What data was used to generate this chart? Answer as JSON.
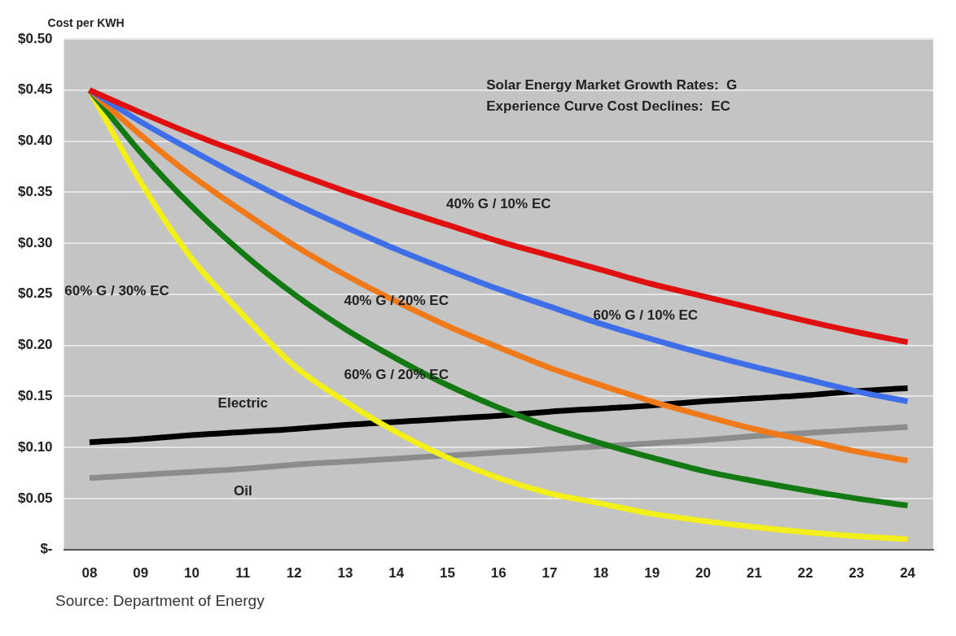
{
  "chart_data": {
    "type": "line",
    "ylabel": "Cost per KWH",
    "categories": [
      "08",
      "09",
      "10",
      "11",
      "12",
      "13",
      "14",
      "15",
      "16",
      "17",
      "18",
      "19",
      "20",
      "21",
      "22",
      "23",
      "24"
    ],
    "ylim": [
      0,
      0.5
    ],
    "yticks": [
      {
        "value": 0,
        "label": "$-"
      },
      {
        "value": 0.05,
        "label": "$0.05"
      },
      {
        "value": 0.1,
        "label": "$0.10"
      },
      {
        "value": 0.15,
        "label": "$0.15"
      },
      {
        "value": 0.2,
        "label": "$0.20"
      },
      {
        "value": 0.25,
        "label": "$0.25"
      },
      {
        "value": 0.3,
        "label": "$0.30"
      },
      {
        "value": 0.35,
        "label": "$0.35"
      },
      {
        "value": 0.4,
        "label": "$0.40"
      },
      {
        "value": 0.45,
        "label": "$0.45"
      },
      {
        "value": 0.5,
        "label": "$0.50"
      }
    ],
    "grid": "y",
    "legend": false,
    "marker": "none",
    "line_style": "solid",
    "series": [
      {
        "name": "40% G / 10% EC",
        "color": "#e01010",
        "values": [
          0.45,
          0.428,
          0.407,
          0.388,
          0.369,
          0.351,
          0.334,
          0.318,
          0.302,
          0.288,
          0.274,
          0.26,
          0.248,
          0.236,
          0.224,
          0.213,
          0.203
        ]
      },
      {
        "name": "60% G / 10% EC",
        "color": "#3f6fe8",
        "values": [
          0.45,
          0.419,
          0.391,
          0.364,
          0.339,
          0.316,
          0.294,
          0.274,
          0.255,
          0.238,
          0.221,
          0.206,
          0.192,
          0.179,
          0.167,
          0.155,
          0.145
        ]
      },
      {
        "name": "40% G / 20% EC",
        "color": "#f07a1a",
        "values": [
          0.45,
          0.406,
          0.366,
          0.331,
          0.298,
          0.269,
          0.243,
          0.219,
          0.198,
          0.178,
          0.161,
          0.145,
          0.131,
          0.118,
          0.107,
          0.096,
          0.087
        ]
      },
      {
        "name": "60% G / 20% EC",
        "color": "#137a13",
        "values": [
          0.45,
          0.389,
          0.336,
          0.29,
          0.25,
          0.216,
          0.187,
          0.161,
          0.139,
          0.12,
          0.104,
          0.09,
          0.077,
          0.067,
          0.058,
          0.05,
          0.043
        ]
      },
      {
        "name": "60% G / 30% EC",
        "color": "#f2ef1a",
        "values": [
          0.45,
          0.36,
          0.285,
          0.23,
          0.18,
          0.145,
          0.115,
          0.09,
          0.07,
          0.055,
          0.045,
          0.035,
          0.028,
          0.022,
          0.017,
          0.013,
          0.01
        ]
      },
      {
        "name": "Electric",
        "color": "#000000",
        "values": [
          0.105,
          0.108,
          0.112,
          0.115,
          0.118,
          0.122,
          0.125,
          0.128,
          0.131,
          0.135,
          0.138,
          0.141,
          0.145,
          0.148,
          0.151,
          0.155,
          0.158
        ]
      },
      {
        "name": "Oil",
        "color": "#8c8c8c",
        "values": [
          0.07,
          0.073,
          0.076,
          0.079,
          0.083,
          0.086,
          0.089,
          0.092,
          0.095,
          0.098,
          0.101,
          0.104,
          0.107,
          0.111,
          0.114,
          0.117,
          0.12
        ]
      }
    ],
    "annotations": [
      "Solar Energy Market Growth Rates:  G",
      "Experience Curve Cost Declines:  EC",
      "Source: Department of Energy"
    ]
  }
}
